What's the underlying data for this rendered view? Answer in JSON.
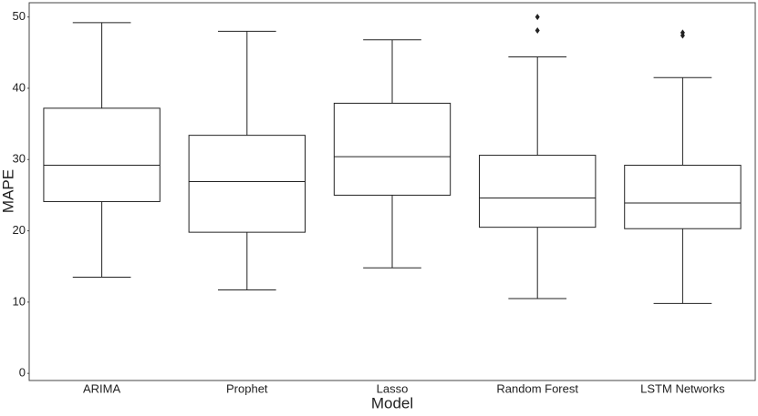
{
  "chart_data": {
    "type": "box",
    "x_label": "Model",
    "y_label": "MAPE",
    "categories": [
      "ARIMA",
      "Prophet",
      "Lasso",
      "Random Forest",
      "LSTM Networks"
    ],
    "boxes": [
      {
        "whislo": 13.5,
        "q1": 24.1,
        "med": 29.2,
        "q3": 37.2,
        "whishi": 49.2
      },
      {
        "whislo": 11.7,
        "q1": 19.8,
        "med": 26.9,
        "q3": 33.4,
        "whishi": 48.0
      },
      {
        "whislo": 14.8,
        "q1": 25.0,
        "med": 30.4,
        "q3": 37.9,
        "whishi": 46.8
      },
      {
        "whislo": 10.5,
        "q1": 20.5,
        "med": 24.6,
        "q3": 30.6,
        "whishi": 44.4,
        "fliers": [
          48.1,
          50.0
        ]
      },
      {
        "whislo": 9.8,
        "q1": 20.3,
        "med": 23.9,
        "q3": 29.2,
        "whishi": 41.5,
        "fliers": [
          47.4,
          47.8
        ]
      }
    ],
    "color": "#222222",
    "ylim": [
      -1,
      52
    ],
    "yticks": [
      0,
      10,
      20,
      30,
      40,
      50
    ]
  }
}
